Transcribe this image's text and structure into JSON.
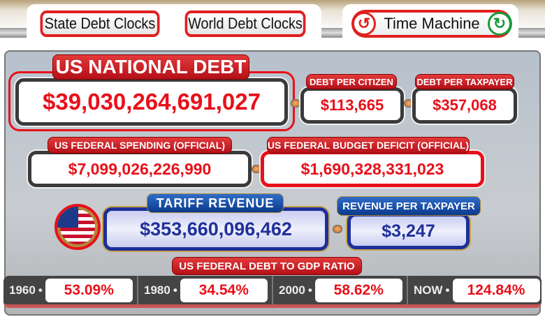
{
  "nav": {
    "state_label": "State Debt Clocks",
    "world_label": "World Debt Clocks",
    "time_machine_label": "Time Machine",
    "back_icon": "undo-arrow-icon",
    "forward_icon": "redo-arrow-icon"
  },
  "national_debt": {
    "label": "US NATIONAL DEBT",
    "value": "$39,030,264,691,027"
  },
  "per_citizen": {
    "label": "DEBT PER CITIZEN",
    "value": "$113,665"
  },
  "per_taxpayer": {
    "label": "DEBT PER TAXPAYER",
    "value": "$357,068"
  },
  "spending": {
    "label": "US FEDERAL SPENDING (OFFICIAL)",
    "value": "$7,099,026,226,990"
  },
  "deficit": {
    "label": "US FEDERAL BUDGET DEFICIT (OFFICIAL)",
    "value": "$1,690,328,331,023"
  },
  "tariff": {
    "label": "TARIFF REVENUE",
    "value": "$353,660,096,462"
  },
  "revenue_per_taxpayer": {
    "label": "REVENUE PER TAXPAYER",
    "value": "$3,247"
  },
  "gdp_ratio": {
    "label": "US FEDERAL DEBT TO GDP RATIO",
    "items": [
      {
        "year": "1960",
        "value": "53.09%"
      },
      {
        "year": "1980",
        "value": "34.54%"
      },
      {
        "year": "2000",
        "value": "58.62%"
      },
      {
        "year": "NOW",
        "value": "124.84%"
      }
    ]
  },
  "colors": {
    "red": "#e8101a",
    "blue": "#20309a",
    "green": "#1a9a3a"
  }
}
